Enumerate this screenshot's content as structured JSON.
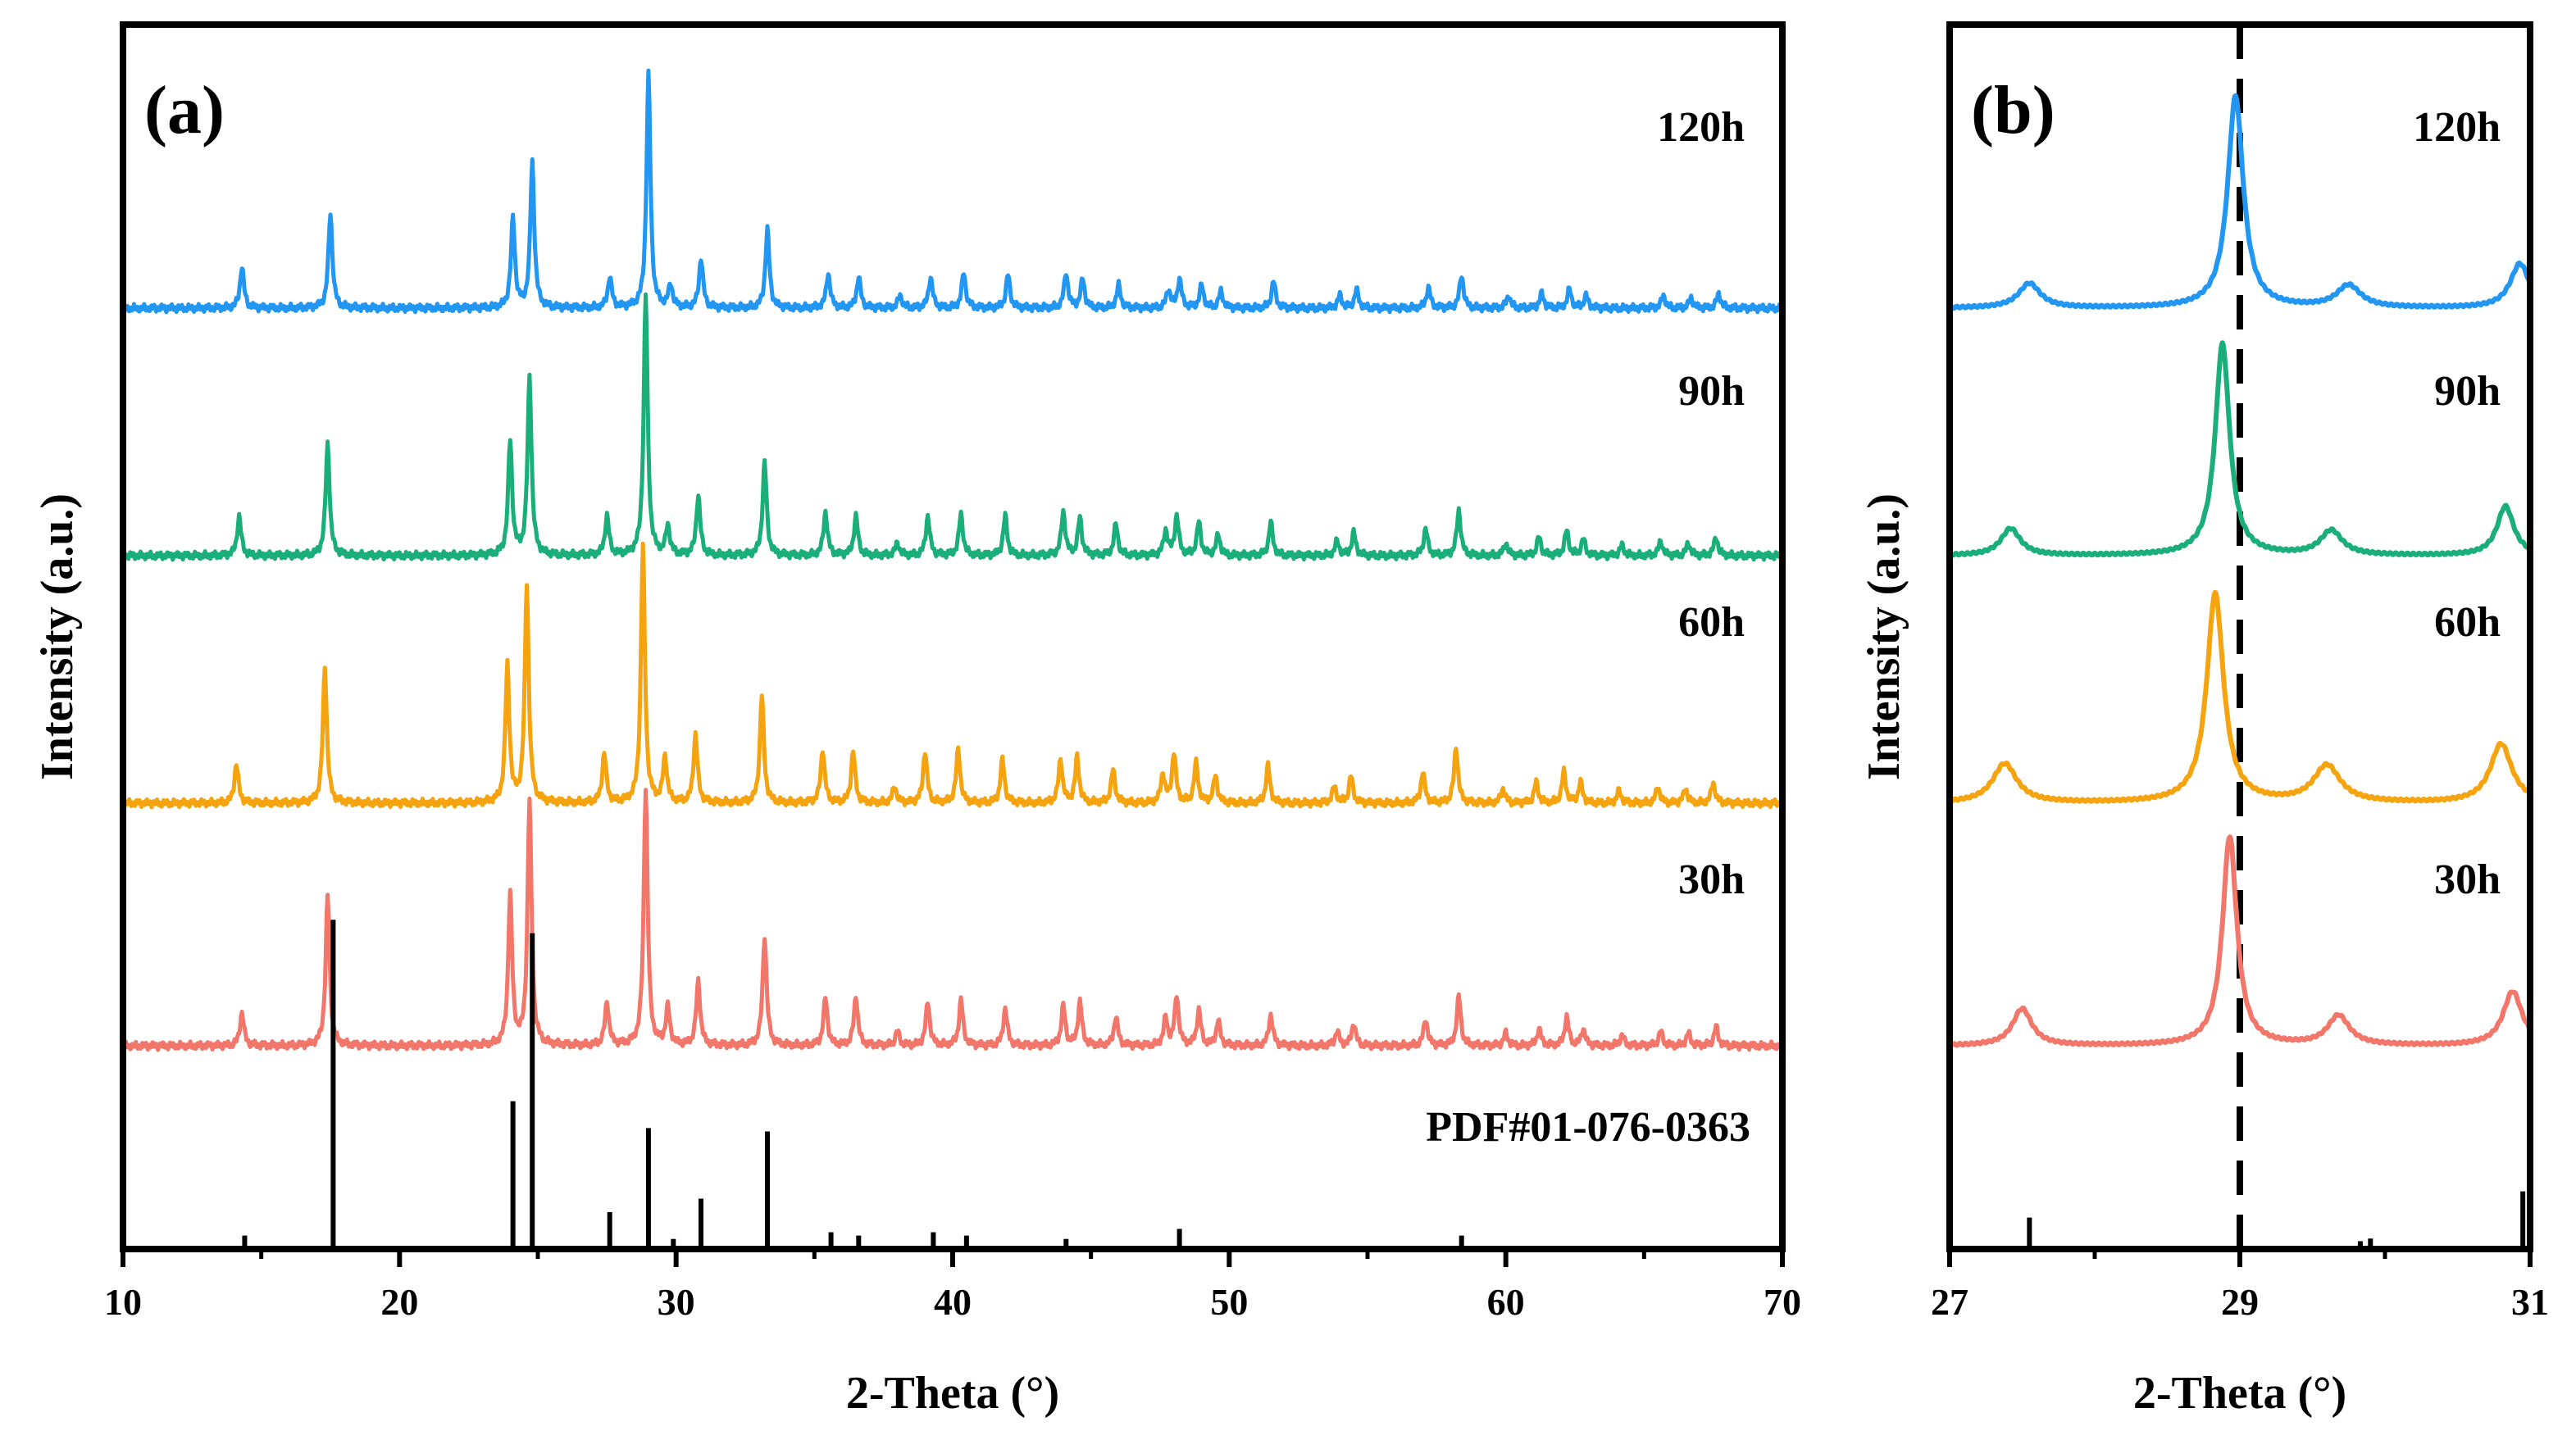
{
  "colors": {
    "120h": "#2196F3",
    "90h": "#1AAE7A",
    "60h": "#F5A30F",
    "30h": "#F2776A",
    "reference": "#000000"
  },
  "chart_data": [
    {
      "panel": "(a)",
      "type": "line",
      "xlabel": "2-Theta (°)",
      "ylabel": "Intensity (a.u.)",
      "xlim": [
        10,
        70
      ],
      "xticks": [
        "10",
        "20",
        "30",
        "40",
        "50",
        "60",
        "70"
      ],
      "series": [
        {
          "name": "120h",
          "peaks": [
            {
              "x": 14.3,
              "h": 0.2
            },
            {
              "x": 17.5,
              "h": 0.46
            },
            {
              "x": 24.1,
              "h": 0.43
            },
            {
              "x": 24.8,
              "h": 0.7
            },
            {
              "x": 27.6,
              "h": 0.15
            },
            {
              "x": 29.0,
              "h": 1.12
            },
            {
              "x": 29.8,
              "h": 0.11
            },
            {
              "x": 30.9,
              "h": 0.24
            },
            {
              "x": 33.3,
              "h": 0.38
            },
            {
              "x": 35.5,
              "h": 0.17
            },
            {
              "x": 36.6,
              "h": 0.15
            },
            {
              "x": 38.1,
              "h": 0.06
            },
            {
              "x": 39.2,
              "h": 0.15
            },
            {
              "x": 40.4,
              "h": 0.17
            },
            {
              "x": 42.0,
              "h": 0.16
            },
            {
              "x": 44.1,
              "h": 0.17
            },
            {
              "x": 44.7,
              "h": 0.14
            },
            {
              "x": 46.0,
              "h": 0.11
            },
            {
              "x": 47.8,
              "h": 0.09
            },
            {
              "x": 48.2,
              "h": 0.14
            },
            {
              "x": 49.0,
              "h": 0.11
            },
            {
              "x": 49.7,
              "h": 0.08
            },
            {
              "x": 51.6,
              "h": 0.13
            },
            {
              "x": 54.0,
              "h": 0.06
            },
            {
              "x": 54.6,
              "h": 0.09
            },
            {
              "x": 57.2,
              "h": 0.1
            },
            {
              "x": 58.4,
              "h": 0.16
            },
            {
              "x": 60.1,
              "h": 0.06
            },
            {
              "x": 61.3,
              "h": 0.07
            },
            {
              "x": 62.3,
              "h": 0.09
            },
            {
              "x": 62.9,
              "h": 0.06
            },
            {
              "x": 65.7,
              "h": 0.06
            },
            {
              "x": 66.7,
              "h": 0.05
            },
            {
              "x": 67.7,
              "h": 0.07
            }
          ]
        },
        {
          "name": "90h",
          "peaks": [
            {
              "x": 14.2,
              "h": 0.19
            },
            {
              "x": 17.4,
              "h": 0.54
            },
            {
              "x": 24.0,
              "h": 0.55
            },
            {
              "x": 24.7,
              "h": 0.86
            },
            {
              "x": 27.5,
              "h": 0.19
            },
            {
              "x": 28.9,
              "h": 1.25
            },
            {
              "x": 29.7,
              "h": 0.14
            },
            {
              "x": 30.8,
              "h": 0.29
            },
            {
              "x": 33.2,
              "h": 0.45
            },
            {
              "x": 35.4,
              "h": 0.21
            },
            {
              "x": 36.5,
              "h": 0.19
            },
            {
              "x": 38.0,
              "h": 0.06
            },
            {
              "x": 39.1,
              "h": 0.19
            },
            {
              "x": 40.3,
              "h": 0.2
            },
            {
              "x": 41.9,
              "h": 0.19
            },
            {
              "x": 44.0,
              "h": 0.21
            },
            {
              "x": 44.6,
              "h": 0.18
            },
            {
              "x": 45.9,
              "h": 0.15
            },
            {
              "x": 47.7,
              "h": 0.12
            },
            {
              "x": 48.1,
              "h": 0.19
            },
            {
              "x": 48.9,
              "h": 0.16
            },
            {
              "x": 49.6,
              "h": 0.1
            },
            {
              "x": 51.5,
              "h": 0.16
            },
            {
              "x": 53.9,
              "h": 0.07
            },
            {
              "x": 54.5,
              "h": 0.11
            },
            {
              "x": 57.1,
              "h": 0.13
            },
            {
              "x": 58.3,
              "h": 0.22
            },
            {
              "x": 60.0,
              "h": 0.06
            },
            {
              "x": 61.2,
              "h": 0.09
            },
            {
              "x": 62.2,
              "h": 0.12
            },
            {
              "x": 62.8,
              "h": 0.08
            },
            {
              "x": 64.2,
              "h": 0.05
            },
            {
              "x": 65.6,
              "h": 0.07
            },
            {
              "x": 66.6,
              "h": 0.06
            },
            {
              "x": 67.6,
              "h": 0.09
            }
          ]
        },
        {
          "name": "60h",
          "peaks": [
            {
              "x": 14.1,
              "h": 0.19
            },
            {
              "x": 17.3,
              "h": 0.66
            },
            {
              "x": 23.9,
              "h": 0.66
            },
            {
              "x": 24.6,
              "h": 1.05
            },
            {
              "x": 27.4,
              "h": 0.24
            },
            {
              "x": 28.8,
              "h": 1.24
            },
            {
              "x": 29.6,
              "h": 0.22
            },
            {
              "x": 30.7,
              "h": 0.33
            },
            {
              "x": 33.1,
              "h": 0.52
            },
            {
              "x": 35.3,
              "h": 0.26
            },
            {
              "x": 36.4,
              "h": 0.25
            },
            {
              "x": 37.9,
              "h": 0.08
            },
            {
              "x": 39.0,
              "h": 0.25
            },
            {
              "x": 40.2,
              "h": 0.26
            },
            {
              "x": 41.8,
              "h": 0.21
            },
            {
              "x": 43.9,
              "h": 0.21
            },
            {
              "x": 44.5,
              "h": 0.22
            },
            {
              "x": 45.8,
              "h": 0.16
            },
            {
              "x": 47.6,
              "h": 0.14
            },
            {
              "x": 48.0,
              "h": 0.24
            },
            {
              "x": 48.8,
              "h": 0.19
            },
            {
              "x": 49.5,
              "h": 0.13
            },
            {
              "x": 51.4,
              "h": 0.18
            },
            {
              "x": 53.8,
              "h": 0.08
            },
            {
              "x": 54.4,
              "h": 0.13
            },
            {
              "x": 57.0,
              "h": 0.15
            },
            {
              "x": 58.2,
              "h": 0.27
            },
            {
              "x": 59.9,
              "h": 0.07
            },
            {
              "x": 61.1,
              "h": 0.1
            },
            {
              "x": 62.1,
              "h": 0.15
            },
            {
              "x": 62.7,
              "h": 0.1
            },
            {
              "x": 64.1,
              "h": 0.06
            },
            {
              "x": 65.5,
              "h": 0.08
            },
            {
              "x": 66.5,
              "h": 0.07
            },
            {
              "x": 67.5,
              "h": 0.1
            }
          ]
        },
        {
          "name": "30h",
          "peaks": [
            {
              "x": 14.3,
              "h": 0.16
            },
            {
              "x": 17.4,
              "h": 0.72
            },
            {
              "x": 24.0,
              "h": 0.72
            },
            {
              "x": 24.7,
              "h": 1.18
            },
            {
              "x": 27.5,
              "h": 0.21
            },
            {
              "x": 28.9,
              "h": 1.24
            },
            {
              "x": 29.7,
              "h": 0.18
            },
            {
              "x": 30.8,
              "h": 0.31
            },
            {
              "x": 33.2,
              "h": 0.53
            },
            {
              "x": 35.4,
              "h": 0.23
            },
            {
              "x": 36.5,
              "h": 0.24
            },
            {
              "x": 38.0,
              "h": 0.07
            },
            {
              "x": 39.1,
              "h": 0.21
            },
            {
              "x": 40.3,
              "h": 0.22
            },
            {
              "x": 41.9,
              "h": 0.18
            },
            {
              "x": 44.0,
              "h": 0.19
            },
            {
              "x": 44.6,
              "h": 0.21
            },
            {
              "x": 45.9,
              "h": 0.14
            },
            {
              "x": 47.7,
              "h": 0.13
            },
            {
              "x": 48.1,
              "h": 0.24
            },
            {
              "x": 48.9,
              "h": 0.17
            },
            {
              "x": 49.6,
              "h": 0.12
            },
            {
              "x": 51.5,
              "h": 0.15
            },
            {
              "x": 53.9,
              "h": 0.07
            },
            {
              "x": 54.5,
              "h": 0.11
            },
            {
              "x": 57.1,
              "h": 0.13
            },
            {
              "x": 58.3,
              "h": 0.24
            },
            {
              "x": 60.0,
              "h": 0.06
            },
            {
              "x": 61.2,
              "h": 0.08
            },
            {
              "x": 62.2,
              "h": 0.14
            },
            {
              "x": 62.8,
              "h": 0.08
            },
            {
              "x": 64.2,
              "h": 0.05
            },
            {
              "x": 65.6,
              "h": 0.07
            },
            {
              "x": 66.6,
              "h": 0.06
            },
            {
              "x": 67.6,
              "h": 0.09
            }
          ]
        }
      ],
      "reference": {
        "name": "PDF#01-076-0363",
        "lines": [
          {
            "x": 14.4,
            "h": 0.04
          },
          {
            "x": 17.6,
            "h": 0.98
          },
          {
            "x": 24.1,
            "h": 0.44
          },
          {
            "x": 24.8,
            "h": 0.94
          },
          {
            "x": 27.6,
            "h": 0.11
          },
          {
            "x": 29.0,
            "h": 0.36
          },
          {
            "x": 29.9,
            "h": 0.03
          },
          {
            "x": 30.9,
            "h": 0.15
          },
          {
            "x": 33.3,
            "h": 0.35
          },
          {
            "x": 35.6,
            "h": 0.05
          },
          {
            "x": 36.6,
            "h": 0.04
          },
          {
            "x": 39.3,
            "h": 0.05
          },
          {
            "x": 40.5,
            "h": 0.04
          },
          {
            "x": 44.1,
            "h": 0.03
          },
          {
            "x": 48.2,
            "h": 0.06
          },
          {
            "x": 58.4,
            "h": 0.04
          }
        ]
      },
      "annotations": [
        "(a)",
        "120h",
        "90h",
        "60h",
        "30h",
        "PDF#01-076-0363"
      ]
    },
    {
      "panel": "(b)",
      "type": "line",
      "xlabel": "2-Theta (°)",
      "ylabel": "Intensity (a.u.)",
      "xlim": [
        27,
        31
      ],
      "xticks": [
        "27",
        "29",
        "31"
      ],
      "dashed_line_x": 29.0,
      "series": [
        {
          "name": "120h",
          "peaks": [
            {
              "x": 27.55,
              "h": 0.1,
              "w": 0.09
            },
            {
              "x": 28.97,
              "h": 0.86,
              "w": 0.065
            },
            {
              "x": 29.75,
              "h": 0.09,
              "w": 0.1
            },
            {
              "x": 30.93,
              "h": 0.18,
              "w": 0.08
            }
          ]
        },
        {
          "name": "90h",
          "peaks": [
            {
              "x": 27.42,
              "h": 0.11,
              "w": 0.08
            },
            {
              "x": 28.88,
              "h": 0.86,
              "w": 0.06
            },
            {
              "x": 29.63,
              "h": 0.1,
              "w": 0.09
            },
            {
              "x": 30.83,
              "h": 0.2,
              "w": 0.07
            }
          ]
        },
        {
          "name": "60h",
          "peaks": [
            {
              "x": 27.38,
              "h": 0.16,
              "w": 0.1
            },
            {
              "x": 28.83,
              "h": 0.85,
              "w": 0.07
            },
            {
              "x": 29.6,
              "h": 0.15,
              "w": 0.11
            },
            {
              "x": 30.8,
              "h": 0.24,
              "w": 0.09
            }
          ]
        },
        {
          "name": "30h",
          "peaks": [
            {
              "x": 27.5,
              "h": 0.15,
              "w": 0.08
            },
            {
              "x": 28.93,
              "h": 0.85,
              "w": 0.06
            },
            {
              "x": 29.68,
              "h": 0.12,
              "w": 0.09
            },
            {
              "x": 30.88,
              "h": 0.22,
              "w": 0.08
            }
          ]
        }
      ],
      "reference": {
        "lines": [
          {
            "x": 27.55,
            "h": 0.12
          },
          {
            "x": 29.83,
            "h": 0.03
          },
          {
            "x": 29.9,
            "h": 0.04
          },
          {
            "x": 30.95,
            "h": 0.22
          }
        ]
      },
      "annotations": [
        "(b)",
        "120h",
        "90h",
        "60h",
        "30h"
      ]
    }
  ]
}
